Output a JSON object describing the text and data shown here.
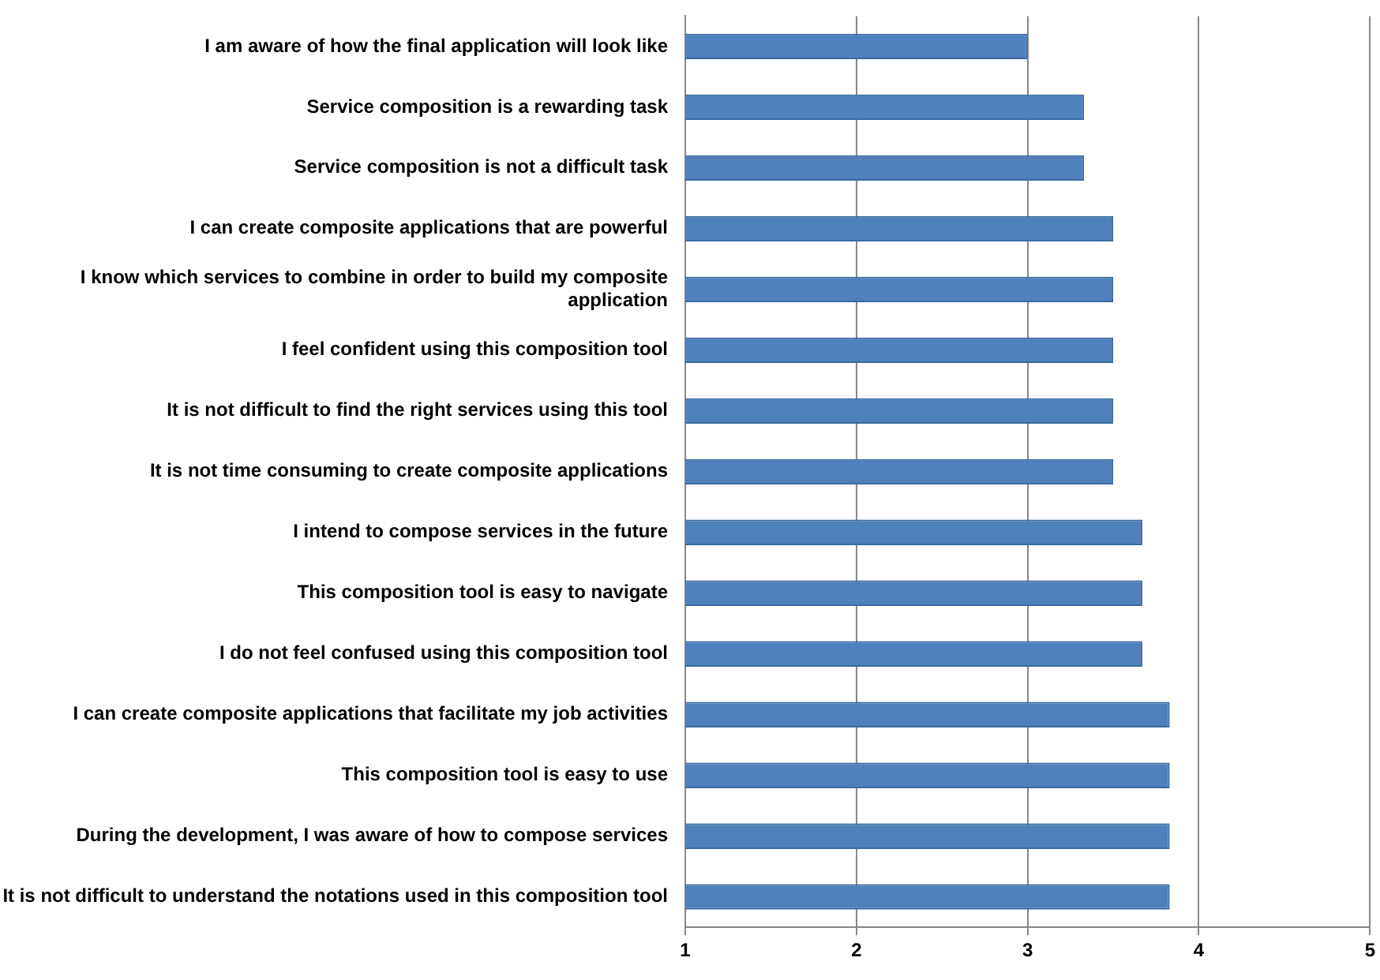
{
  "chart_data": {
    "type": "bar",
    "orientation": "horizontal",
    "categories": [
      "I am aware of how the final application will look like",
      "Service composition is a rewarding task",
      "Service composition is not a difficult task",
      "I can create composite applications that are powerful",
      "I know which services to combine in order to build my composite application",
      "I feel confident using this composition tool",
      "It is not difficult to find the right services using this tool",
      "It is not time consuming to create composite applications",
      "I intend to compose services in the future",
      "This composition tool is easy to navigate",
      "I do not feel confused using this composition tool",
      "I can create composite applications that facilitate my job activities",
      "This composition tool is easy to use",
      "During the development, I was aware of how to compose services",
      "It is not difficult to understand the notations used in this composition tool"
    ],
    "values": [
      3.0,
      3.33,
      3.33,
      3.5,
      3.5,
      3.5,
      3.5,
      3.5,
      3.67,
      3.67,
      3.67,
      3.83,
      3.83,
      3.83,
      3.83
    ],
    "color": "#4f81bd",
    "xlim": [
      1,
      5
    ],
    "xticks": [
      1,
      2,
      3,
      4,
      5
    ],
    "grid": "x"
  }
}
